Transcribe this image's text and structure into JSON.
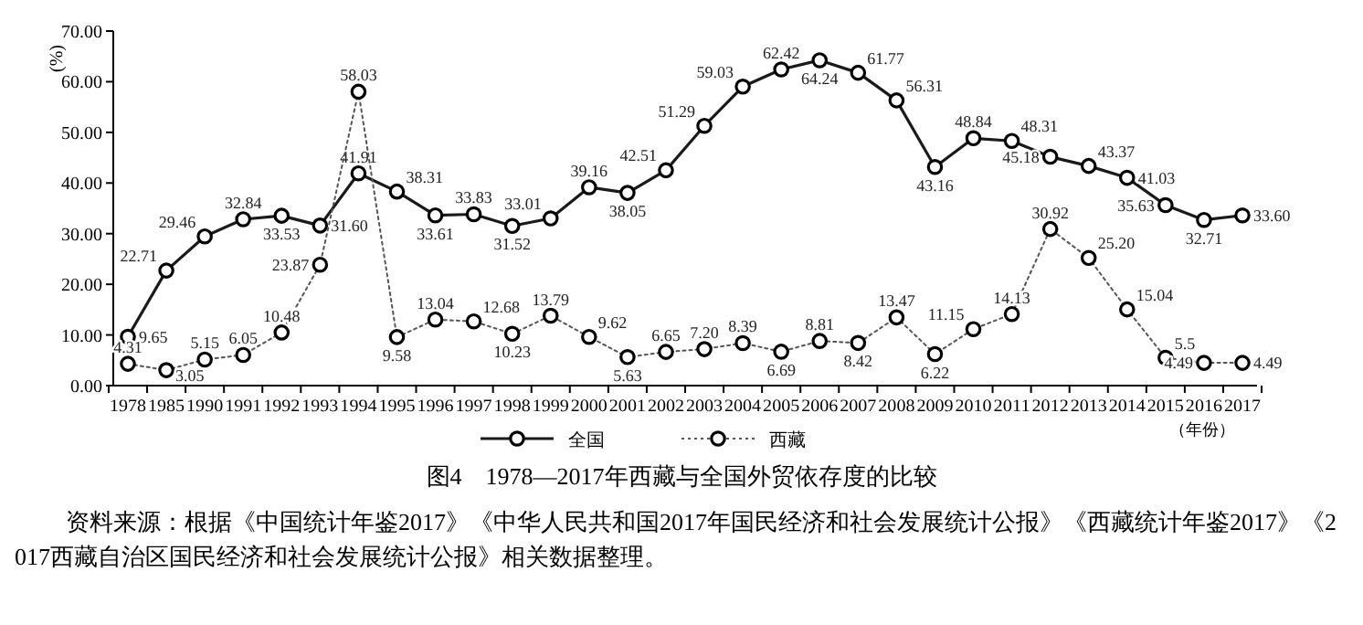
{
  "chart_data": {
    "type": "line",
    "title": "图4　1978—2017年西藏与全国外贸依存度的比较",
    "ylabel": "(%)",
    "xlabel": "（年份）",
    "categories": [
      "1978",
      "1985",
      "1990",
      "1991",
      "1992",
      "1993",
      "1994",
      "1995",
      "1996",
      "1997",
      "1998",
      "1999",
      "2000",
      "2001",
      "2002",
      "2003",
      "2004",
      "2005",
      "2006",
      "2007",
      "2008",
      "2009",
      "2010",
      "2011",
      "2012",
      "2013",
      "2014",
      "2015",
      "2016",
      "2017"
    ],
    "series": [
      {
        "name": "全国",
        "color": "#1a1a1a",
        "line_style": "solid",
        "values": [
          9.65,
          22.71,
          29.46,
          32.84,
          33.53,
          31.6,
          41.91,
          38.31,
          33.61,
          33.83,
          31.52,
          33.01,
          39.16,
          38.05,
          42.51,
          51.29,
          59.03,
          62.42,
          64.24,
          61.77,
          56.31,
          43.16,
          48.84,
          48.31,
          45.18,
          43.37,
          41.03,
          35.63,
          32.71,
          33.6
        ],
        "value_labels": [
          "9.65",
          "22.71",
          "29.46",
          "32.84",
          "33.53",
          "31.60",
          "41.91",
          "38.31",
          "33.61",
          "33.83",
          "31.52",
          "33.01",
          "39.16",
          "38.05",
          "42.51",
          "51.29",
          "59.03",
          "62.42",
          "64.24",
          "61.77",
          "56.31",
          "43.16",
          "48.84",
          "48.31",
          "45.18",
          "43.37",
          "41.03",
          "35.63",
          "32.71",
          "33.60"
        ]
      },
      {
        "name": "西藏",
        "color": "#555555",
        "line_style": "dotted",
        "values": [
          4.31,
          3.05,
          5.15,
          6.05,
          10.48,
          23.87,
          58.03,
          9.58,
          13.04,
          12.68,
          10.23,
          13.79,
          9.62,
          5.63,
          6.65,
          7.2,
          8.39,
          6.69,
          8.81,
          8.42,
          13.47,
          6.22,
          11.15,
          14.13,
          30.92,
          25.2,
          15.04,
          5.5,
          4.49,
          4.49
        ],
        "value_labels": [
          "4.31",
          "3.05",
          "5.15",
          "6.05",
          "10.48",
          "23.87",
          "58.03",
          "9.58",
          "13.04",
          "12.68",
          "10.23",
          "13.79",
          "9.62",
          "5.63",
          "6.65",
          "7.20",
          "8.39",
          "6.69",
          "8.81",
          "8.42",
          "13.47",
          "6.22",
          "11.15",
          "14.13",
          "30.92",
          "25.20",
          "15.04",
          "5.5",
          "4.49",
          "4.49"
        ]
      }
    ],
    "ylim": [
      0,
      70
    ],
    "yticks": [
      {
        "value": 0,
        "label": "0.00"
      },
      {
        "value": 10,
        "label": "10.00"
      },
      {
        "value": 20,
        "label": "20.00"
      },
      {
        "value": 30,
        "label": "30.00"
      },
      {
        "value": 40,
        "label": "40.00"
      },
      {
        "value": 50,
        "label": "50.00"
      },
      {
        "value": 60,
        "label": "60.00"
      },
      {
        "value": 70,
        "label": "70.00"
      }
    ],
    "grid": false,
    "legend": "bottom",
    "marker": "circle",
    "annotations": [
      "资料来源：根据《中国统计年鉴2017》《中华人民共和国2017年国民经济和社会发展统计公报》《西藏统计年鉴2017》《2017西藏自治区国民经济和社会发展统计公报》相关数据整理。"
    ]
  }
}
